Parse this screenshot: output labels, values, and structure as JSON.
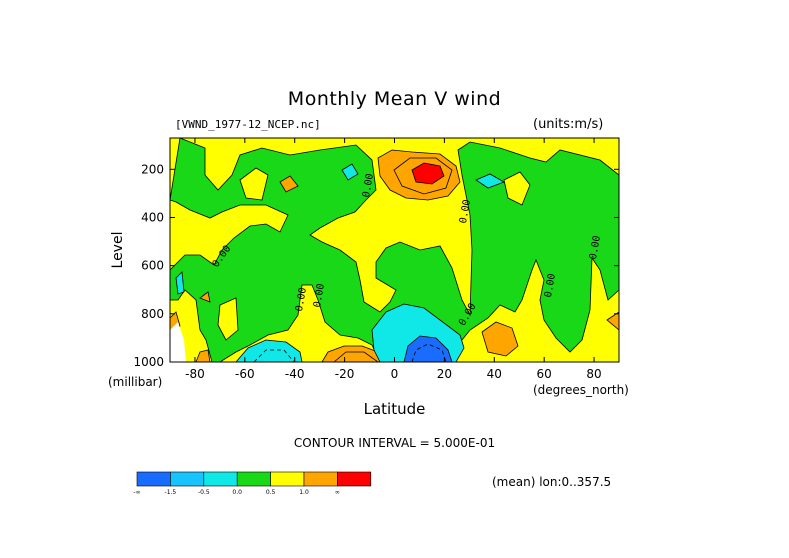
{
  "chart_data": {
    "type": "contour",
    "title": "Monthly Mean V wind",
    "source_label": "[VWND_1977-12_NCEP.nc]",
    "units_label": "(units:m/s)",
    "xlabel": "Latitude",
    "xlabel_units": "(degrees_north)",
    "ylabel": "Level",
    "ylabel_units": "(millibar)",
    "xlim": [
      -90,
      90
    ],
    "ylim": [
      1000,
      70
    ],
    "x_ticks": [
      -80,
      -60,
      -40,
      -20,
      0,
      20,
      40,
      60,
      80
    ],
    "x_tick_labels": [
      "-80",
      "-60",
      "-40",
      "-20",
      "0",
      "20",
      "40",
      "60",
      "80"
    ],
    "y_ticks": [
      200,
      400,
      600,
      800,
      1000
    ],
    "y_tick_labels": [
      "200",
      "400",
      "600",
      "800",
      "1000"
    ],
    "contour_interval_text": "CONTOUR INTERVAL = 5.000E-01",
    "mean_text": "(mean) lon:0..357.5",
    "contour_labels": [
      "0.00",
      "0.00",
      "0.00",
      "0.00",
      "0.00",
      "0.00",
      "0.00",
      "0.00"
    ],
    "colorbar": {
      "colors": [
        "#1a6cff",
        "#17c4ff",
        "#10e8e8",
        "#18d818",
        "#ffff00",
        "#ffa500",
        "#ff0000"
      ],
      "labels": [
        "-∞",
        "-1.5",
        "-0.5",
        "0.0",
        "0.5",
        "1.0",
        "∞"
      ]
    }
  }
}
